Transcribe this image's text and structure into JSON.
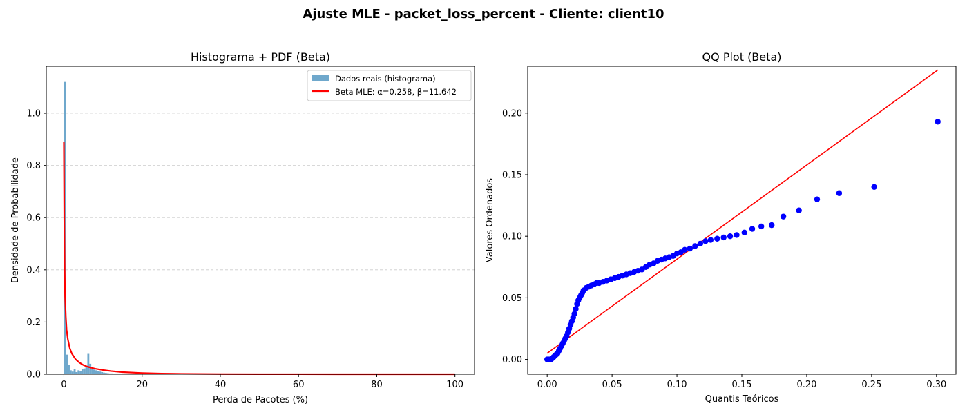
{
  "suptitle": "Ajuste MLE - packet_loss_percent - Cliente: client10",
  "chart_data": [
    {
      "type": "bar",
      "title": "Histograma + PDF (Beta)",
      "xlabel": "Perda de Pacotes (%)",
      "ylabel": "Densidade de Probabilidade",
      "xlim": [
        -4.5,
        105
      ],
      "ylim": [
        0,
        1.18
      ],
      "xticks": [
        "0",
        "20",
        "40",
        "60",
        "80",
        "100"
      ],
      "yticks": [
        "0.0",
        "0.2",
        "0.4",
        "0.6",
        "0.8",
        "1.0"
      ],
      "grid": "y-dashed",
      "legend_position": "top-right",
      "bin_width": 0.5,
      "series": [
        {
          "name": "Dados reais (histograma)",
          "kind": "histogram",
          "color": "#6fa8cc",
          "bins": [
            [
              0.0,
              1.12
            ],
            [
              0.5,
              0.075
            ],
            [
              1.0,
              0.035
            ],
            [
              1.5,
              0.015
            ],
            [
              2.0,
              0.01
            ],
            [
              2.5,
              0.02
            ],
            [
              3.0,
              0.008
            ],
            [
              3.5,
              0.015
            ],
            [
              4.0,
              0.012
            ],
            [
              4.5,
              0.02
            ],
            [
              5.0,
              0.022
            ],
            [
              5.5,
              0.03
            ],
            [
              6.0,
              0.078
            ],
            [
              6.5,
              0.04
            ],
            [
              7.0,
              0.02
            ],
            [
              7.5,
              0.018
            ],
            [
              8.0,
              0.015
            ],
            [
              8.5,
              0.012
            ],
            [
              9.0,
              0.01
            ],
            [
              9.5,
              0.008
            ],
            [
              10.0,
              0.006
            ],
            [
              10.5,
              0.005
            ],
            [
              11.0,
              0.004
            ],
            [
              11.5,
              0.003
            ],
            [
              12.0,
              0.003
            ],
            [
              13.0,
              0.002
            ],
            [
              14.0,
              0.002
            ],
            [
              15.0,
              0.001
            ],
            [
              16.0,
              0.001
            ],
            [
              18.0,
              0.001
            ]
          ]
        },
        {
          "name": "Beta MLE: α=0.258, β=11.642",
          "kind": "line",
          "color": "#ff0000",
          "x": [
            0.0,
            0.1,
            0.2,
            0.3,
            0.5,
            0.7,
            1,
            1.5,
            2,
            3,
            4,
            5,
            6,
            8,
            10,
            12,
            15,
            20,
            25,
            30,
            40,
            50,
            60,
            70,
            80,
            90,
            100
          ],
          "y": [
            0.89,
            0.6,
            0.4,
            0.3,
            0.22,
            0.17,
            0.135,
            0.1,
            0.08,
            0.057,
            0.044,
            0.035,
            0.029,
            0.021,
            0.016,
            0.012,
            0.008,
            0.0045,
            0.0025,
            0.0015,
            0.0005,
            0.0002,
            0.0001,
            3e-05,
            1e-05,
            0.0,
            0.0
          ]
        }
      ]
    },
    {
      "type": "scatter",
      "title": "QQ Plot (Beta)",
      "xlabel": "Quantis Teóricos",
      "ylabel": "Valores Ordenados",
      "xlim": [
        -0.015,
        0.315
      ],
      "ylim": [
        -0.012,
        0.238
      ],
      "xticks": [
        "0.00",
        "0.05",
        "0.10",
        "0.15",
        "0.20",
        "0.25",
        "0.30"
      ],
      "yticks": [
        "0.00",
        "0.05",
        "0.10",
        "0.15",
        "0.20"
      ],
      "grid": "off",
      "series": [
        {
          "name": "",
          "kind": "points",
          "color": "#0000ff",
          "x": [
            0.0,
            0.001,
            0.002,
            0.003,
            0.004,
            0.005,
            0.006,
            0.007,
            0.008,
            0.009,
            0.01,
            0.011,
            0.012,
            0.013,
            0.014,
            0.015,
            0.016,
            0.017,
            0.018,
            0.019,
            0.02,
            0.021,
            0.022,
            0.023,
            0.024,
            0.025,
            0.026,
            0.027,
            0.028,
            0.03,
            0.032,
            0.034,
            0.036,
            0.038,
            0.04,
            0.043,
            0.046,
            0.049,
            0.052,
            0.055,
            0.058,
            0.061,
            0.064,
            0.067,
            0.07,
            0.073,
            0.076,
            0.079,
            0.082,
            0.085,
            0.088,
            0.091,
            0.094,
            0.097,
            0.1,
            0.103,
            0.106,
            0.11,
            0.114,
            0.118,
            0.122,
            0.126,
            0.131,
            0.136,
            0.141,
            0.146,
            0.152,
            0.158,
            0.165,
            0.173,
            0.182,
            0.194,
            0.208,
            0.225,
            0.252,
            0.301
          ],
          "y": [
            0.0,
            0.0,
            0.0,
            0.0,
            0.001,
            0.002,
            0.003,
            0.004,
            0.005,
            0.007,
            0.009,
            0.011,
            0.013,
            0.015,
            0.017,
            0.019,
            0.022,
            0.025,
            0.028,
            0.031,
            0.034,
            0.037,
            0.041,
            0.045,
            0.048,
            0.05,
            0.052,
            0.054,
            0.056,
            0.058,
            0.059,
            0.06,
            0.061,
            0.062,
            0.062,
            0.063,
            0.064,
            0.065,
            0.066,
            0.067,
            0.068,
            0.069,
            0.07,
            0.071,
            0.072,
            0.073,
            0.075,
            0.077,
            0.078,
            0.08,
            0.081,
            0.082,
            0.083,
            0.084,
            0.086,
            0.087,
            0.089,
            0.09,
            0.092,
            0.094,
            0.096,
            0.097,
            0.098,
            0.099,
            0.1,
            0.101,
            0.103,
            0.106,
            0.108,
            0.109,
            0.116,
            0.121,
            0.13,
            0.135,
            0.14,
            0.193
          ]
        },
        {
          "name": "",
          "kind": "reference-line",
          "color": "#ff0000",
          "x": [
            0.0,
            0.301
          ],
          "y": [
            0.005,
            0.235
          ]
        }
      ]
    }
  ]
}
